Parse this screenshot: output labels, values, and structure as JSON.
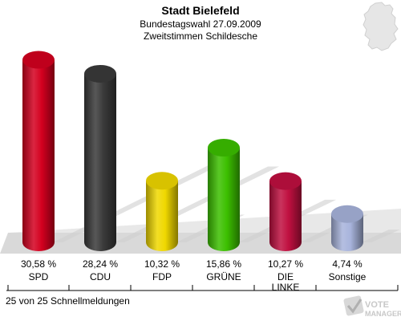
{
  "header": {
    "title": "Stadt Bielefeld",
    "subtitle": "Bundestagswahl 27.09.2009",
    "subtitle2": "Zweitstimmen Schildesche"
  },
  "footer": {
    "text": "25 von 25 Schnellmeldungen"
  },
  "logo": {
    "text_line1": "VOTE",
    "text_line2": "MANAGER"
  },
  "chart_data": {
    "type": "bar",
    "title": "Stadt Bielefeld",
    "categories": [
      "SPD",
      "CDU",
      "FDP",
      "GRÜNE",
      "DIE LINKE",
      "Sonstige"
    ],
    "category_lines": [
      [
        "SPD"
      ],
      [
        "CDU"
      ],
      [
        "FDP"
      ],
      [
        "GRÜNE"
      ],
      [
        "DIE",
        "LINKE"
      ],
      [
        "Sonstige"
      ]
    ],
    "values": [
      30.58,
      28.24,
      10.32,
      15.86,
      10.27,
      4.74
    ],
    "value_labels": [
      "30,58 %",
      "28,24 %",
      "10,32 %",
      "15,86 %",
      "10,27 %",
      "4,74 %"
    ],
    "colors": [
      "#d4001f",
      "#3a3a3a",
      "#f0d800",
      "#3cc000",
      "#c01040",
      "#a8b4dc"
    ],
    "ylim": [
      0,
      32
    ],
    "grid": false,
    "legend": "none"
  }
}
